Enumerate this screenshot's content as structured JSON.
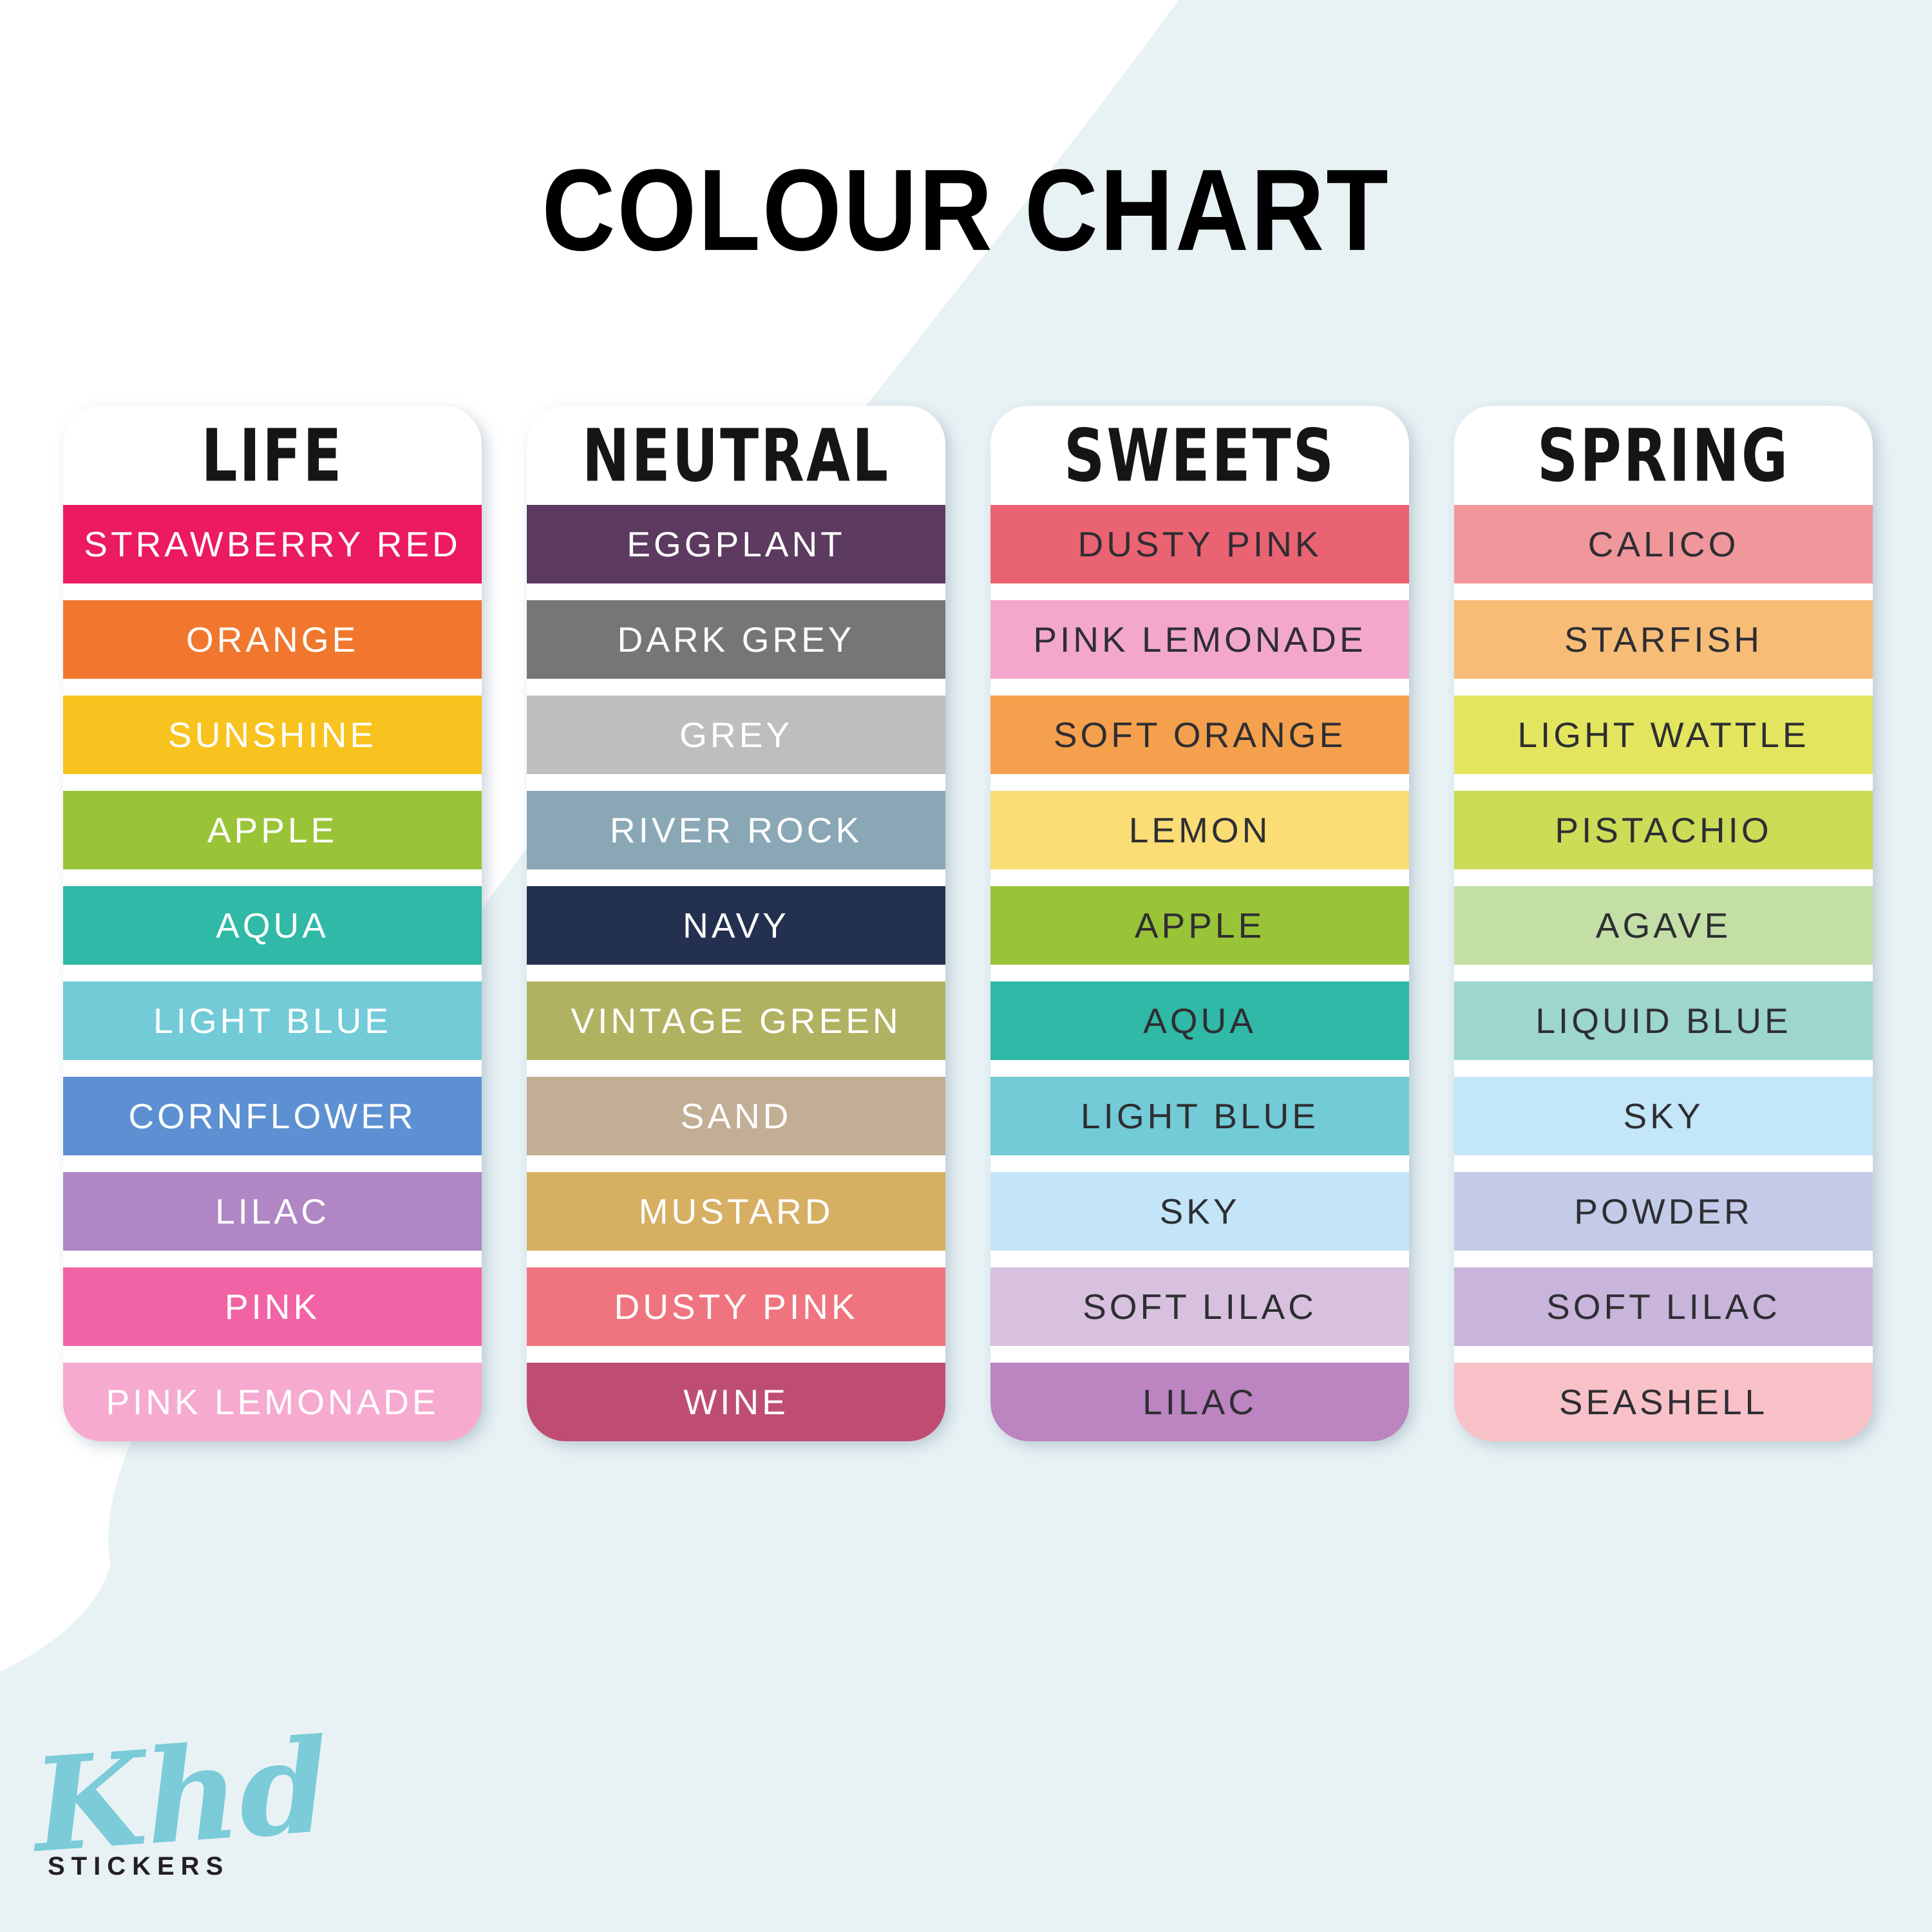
{
  "title": "COLOUR CHART",
  "background": {
    "base_color": "#ffffff",
    "swoosh_color": "#e8f2f5"
  },
  "logo": {
    "script": "Khd",
    "word": "STICKERS",
    "script_color": "#7bcbd9",
    "word_color": "#231f20"
  },
  "columns": [
    {
      "name": "LIFE",
      "text_color": "#ffffff",
      "swatches": [
        {
          "label": "STRAWBERRY RED",
          "color": "#ec1a5e"
        },
        {
          "label": "ORANGE",
          "color": "#f0772d"
        },
        {
          "label": "SUNSHINE",
          "color": "#f8c31e"
        },
        {
          "label": "APPLE",
          "color": "#9ac437"
        },
        {
          "label": "AQUA",
          "color": "#2fb9a6"
        },
        {
          "label": "LIGHT BLUE",
          "color": "#72cbd7"
        },
        {
          "label": "CORNFLOWER",
          "color": "#5c90d2"
        },
        {
          "label": "LILAC",
          "color": "#b086c4"
        },
        {
          "label": "PINK",
          "color": "#f263a5"
        },
        {
          "label": "PINK LEMONADE",
          "color": "#f7aacf"
        }
      ]
    },
    {
      "name": "NEUTRAL",
      "text_color": "#ffffff",
      "swatches": [
        {
          "label": "EGGPLANT",
          "color": "#5d3a60"
        },
        {
          "label": "DARK GREY",
          "color": "#767679"
        },
        {
          "label": "GREY",
          "color": "#bcbec0"
        },
        {
          "label": "RIVER ROCK",
          "color": "#8aa7b5"
        },
        {
          "label": "NAVY",
          "color": "#23304f"
        },
        {
          "label": "VINTAGE GREEN",
          "color": "#b0b261"
        },
        {
          "label": "SAND",
          "color": "#c2ad95"
        },
        {
          "label": "MUSTARD",
          "color": "#d7af63"
        },
        {
          "label": "DUSTY PINK",
          "color": "#f0747f"
        },
        {
          "label": "WINE",
          "color": "#bf4d72"
        }
      ]
    },
    {
      "name": "SWEETS",
      "text_color": "#2e2e33",
      "swatches": [
        {
          "label": "DUSTY PINK",
          "color": "#ea6372"
        },
        {
          "label": "PINK LEMONADE",
          "color": "#f4a7cc"
        },
        {
          "label": "SOFT ORANGE",
          "color": "#f5a04c"
        },
        {
          "label": "LEMON",
          "color": "#fadd75"
        },
        {
          "label": "APPLE",
          "color": "#9ac437"
        },
        {
          "label": "AQUA",
          "color": "#2fb9a6"
        },
        {
          "label": "LIGHT BLUE",
          "color": "#72cbd7"
        },
        {
          "label": "SKY",
          "color": "#c4e5f7"
        },
        {
          "label": "SOFT LILAC",
          "color": "#d8c1df"
        },
        {
          "label": "LILAC",
          "color": "#bc84c1"
        }
      ]
    },
    {
      "name": "SPRING",
      "text_color": "#2e2e33",
      "swatches": [
        {
          "label": "CALICO",
          "color": "#f0979c"
        },
        {
          "label": "STARFISH",
          "color": "#f7bd77"
        },
        {
          "label": "LIGHT WATTLE",
          "color": "#e3e55e"
        },
        {
          "label": "PISTACHIO",
          "color": "#cbdc57"
        },
        {
          "label": "AGAVE",
          "color": "#c3dfa6"
        },
        {
          "label": "LIQUID BLUE",
          "color": "#9dd6cc"
        },
        {
          "label": "SKY",
          "color": "#c3e6f9"
        },
        {
          "label": "POWDER",
          "color": "#c4cbe9"
        },
        {
          "label": "SOFT LILAC",
          "color": "#c9b5db"
        },
        {
          "label": "SEASHELL",
          "color": "#f8c1c8"
        }
      ]
    }
  ]
}
